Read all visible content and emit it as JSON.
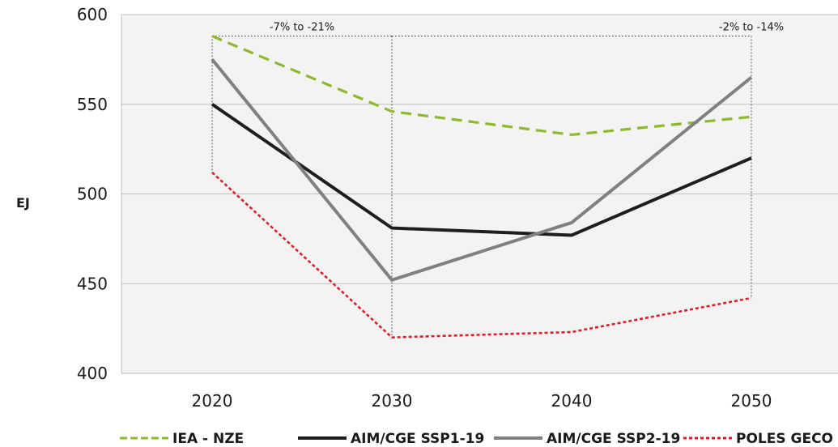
{
  "chart_data": {
    "type": "line",
    "ylabel": "EJ",
    "xlabel": "",
    "x": [
      "2020",
      "2030",
      "2040",
      "2050"
    ],
    "ylim": [
      400,
      600
    ],
    "yticks": [
      "400",
      "450",
      "500",
      "550",
      "600"
    ],
    "grid": true,
    "legend_position": "bottom",
    "series": [
      {
        "name": "IEA - NZE",
        "values": [
          588,
          546,
          533,
          543
        ],
        "color": "#8db92e",
        "style": "dashed"
      },
      {
        "name": "AIM/CGE SSP1-19",
        "values": [
          550,
          481,
          477,
          520
        ],
        "color": "#1e1e1e",
        "style": "solid"
      },
      {
        "name": "AIM/CGE SSP2-19",
        "values": [
          575,
          452,
          484,
          565
        ],
        "color": "#808080",
        "style": "solid"
      },
      {
        "name": "POLES GECO",
        "values": [
          512,
          420,
          423,
          442
        ],
        "color": "#d9202a",
        "style": "dotted"
      }
    ],
    "annotations": [
      {
        "text": "-7% to -21%",
        "x_from": "2020",
        "x_to": "2030"
      },
      {
        "text": "-2% to -14%",
        "x_from": "2040",
        "x_to": "2050"
      }
    ]
  }
}
